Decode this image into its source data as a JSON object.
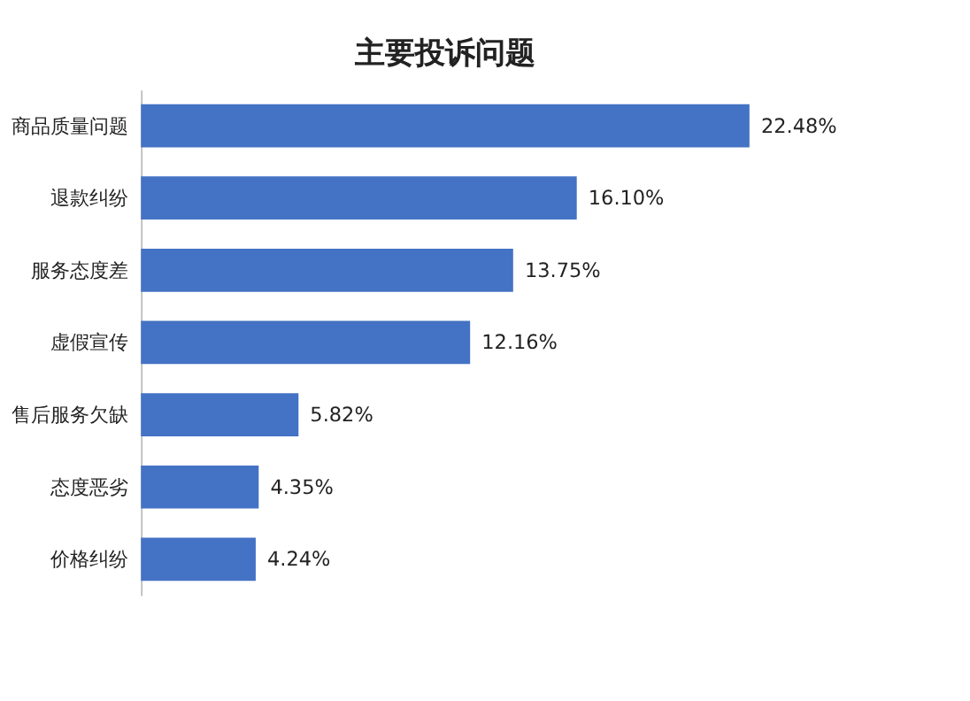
{
  "chart_data": {
    "type": "bar",
    "orientation": "horizontal",
    "title": "主要投诉问题",
    "categories": [
      "商品质量问题",
      "退款纠纷",
      "服务态度差",
      "虚假宣传",
      "售后服务欠缺",
      "态度恶劣",
      "价格纠纷"
    ],
    "values": [
      22.48,
      16.1,
      13.75,
      12.16,
      5.82,
      4.35,
      4.24
    ],
    "value_labels": [
      "22.48%",
      "16.10%",
      "13.75%",
      "12.16%",
      "5.82%",
      "4.35%",
      "4.24%"
    ],
    "color": "#4472c4",
    "tick_labels": "y",
    "grid": false
  }
}
